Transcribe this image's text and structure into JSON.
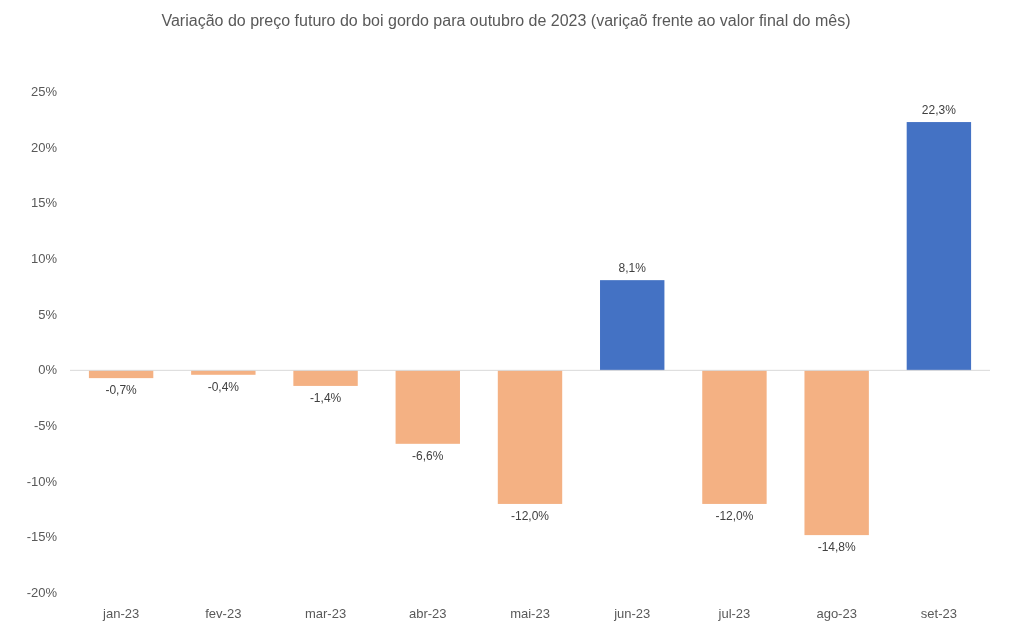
{
  "chart_data": {
    "type": "bar",
    "title": "Variação do preço futuro do boi gordo para outubro de 2023 (variçaõ frente ao valor final do mês)",
    "categories": [
      "jan-23",
      "fev-23",
      "mar-23",
      "abr-23",
      "mai-23",
      "jun-23",
      "jul-23",
      "ago-23",
      "set-23"
    ],
    "values": [
      -0.7,
      -0.4,
      -1.4,
      -6.6,
      -12.0,
      8.1,
      -12.0,
      -14.8,
      22.3
    ],
    "colors": [
      "#f4b183",
      "#f4b183",
      "#f4b183",
      "#f4b183",
      "#f4b183",
      "#4472c4",
      "#f4b183",
      "#f4b183",
      "#4472c4"
    ],
    "value_labels": [
      "-0,7%",
      "-0,4%",
      "-1,4%",
      "-6,6%",
      "-12,0%",
      "8,1%",
      "-12,0%",
      "-14,8%",
      "22,3%"
    ],
    "ylim": [
      -20,
      25
    ],
    "yticks": [
      {
        "value": -20,
        "label": "-20%"
      },
      {
        "value": -15,
        "label": "-15%"
      },
      {
        "value": -10,
        "label": "-10%"
      },
      {
        "value": -5,
        "label": "-5%"
      },
      {
        "value": 0,
        "label": "0%"
      },
      {
        "value": 5,
        "label": "5%"
      },
      {
        "value": 10,
        "label": "10%"
      },
      {
        "value": 15,
        "label": "15%"
      },
      {
        "value": 20,
        "label": "20%"
      },
      {
        "value": 25,
        "label": "25%"
      }
    ]
  }
}
